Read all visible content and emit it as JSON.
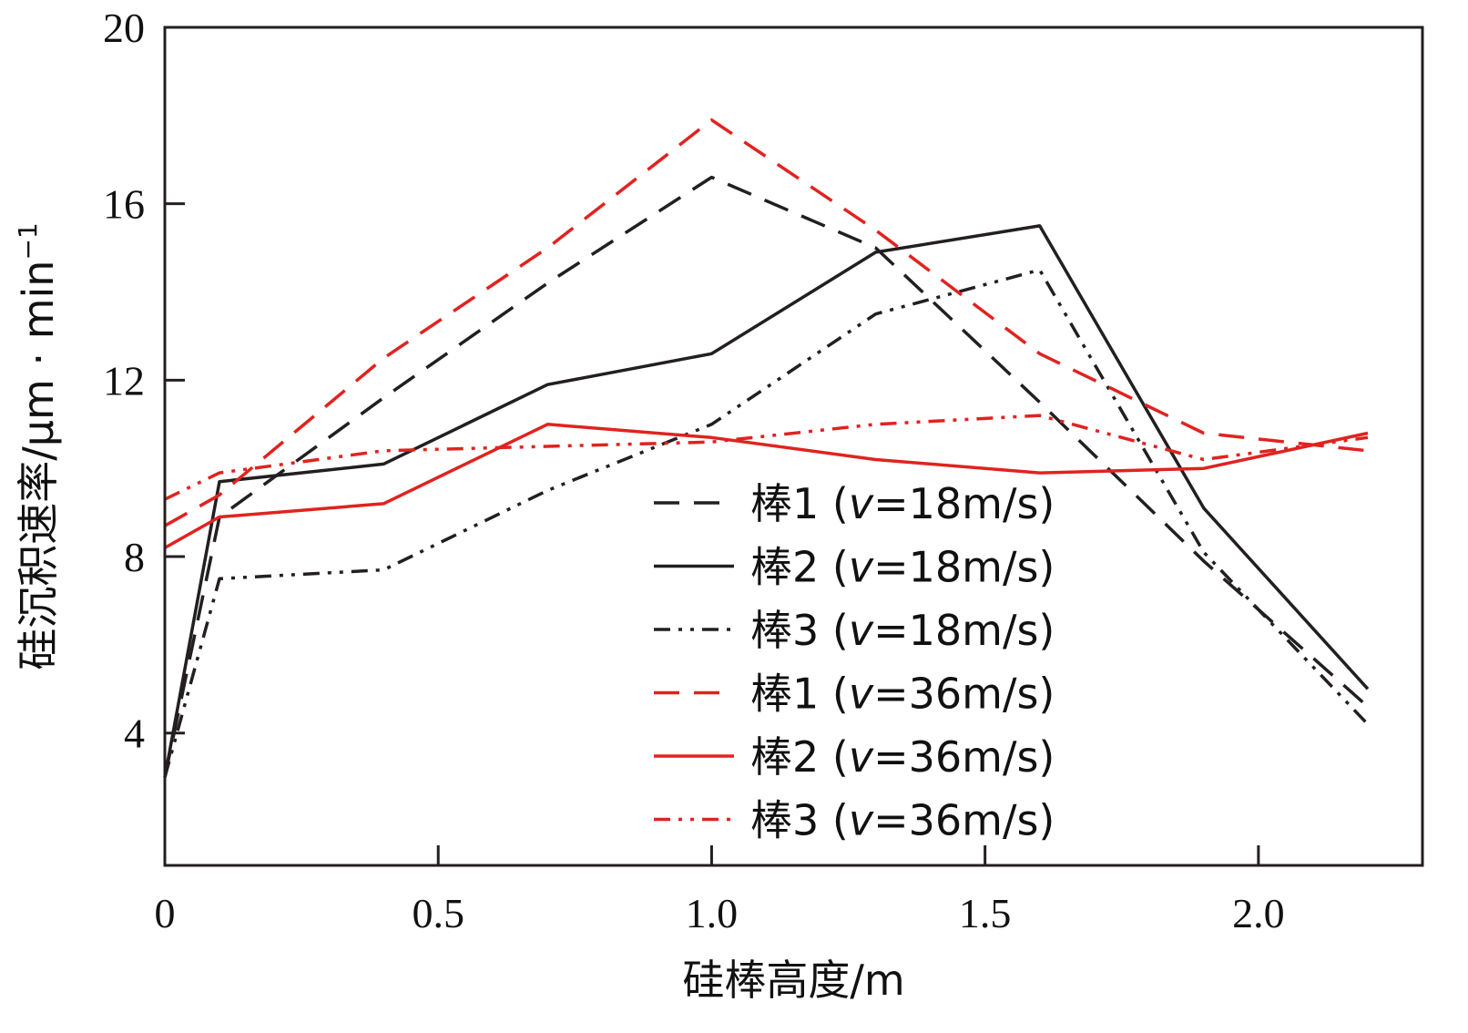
{
  "chart_data": {
    "type": "line",
    "title": "",
    "xlabel": "硅棒高度/m",
    "ylabel": "硅沉积速率/μm · min",
    "ylabel_sup": "−1",
    "xlim": [
      0,
      2.3
    ],
    "ylim": [
      1,
      20
    ],
    "xticks": [
      0,
      0.5,
      1.0,
      1.5,
      2.0
    ],
    "xtick_labels": [
      "0",
      "0.5",
      "1.0",
      "1.5",
      "2.0"
    ],
    "yticks": [
      4,
      8,
      12,
      16,
      20
    ],
    "ytick_labels": [
      "4",
      "8",
      "12",
      "16",
      "20"
    ],
    "legend_position": "center-right",
    "series": [
      {
        "name": "棒1",
        "v_label": "v",
        "speed": "=18m/s",
        "color": "#231f20",
        "dash": "dashed",
        "x": [
          0,
          0.1,
          0.4,
          0.7,
          1.0,
          1.3,
          1.6,
          1.9,
          2.2
        ],
        "y": [
          3.0,
          8.9,
          11.6,
          14.2,
          16.6,
          15.0,
          11.5,
          7.9,
          4.6
        ]
      },
      {
        "name": "棒2",
        "v_label": "v",
        "speed": "=18m/s",
        "color": "#231f20",
        "dash": "solid",
        "x": [
          0,
          0.1,
          0.4,
          0.7,
          1.0,
          1.3,
          1.6,
          1.9,
          2.2
        ],
        "y": [
          3.0,
          9.7,
          10.1,
          11.9,
          12.6,
          14.9,
          15.5,
          9.1,
          5.0
        ]
      },
      {
        "name": "棒3",
        "v_label": "v",
        "speed": "=18m/s",
        "color": "#231f20",
        "dash": "dashdotdot",
        "x": [
          0,
          0.1,
          0.4,
          0.7,
          1.0,
          1.3,
          1.6,
          1.9,
          2.2
        ],
        "y": [
          3.0,
          7.5,
          7.7,
          9.5,
          11.0,
          13.5,
          14.5,
          8.1,
          4.2
        ]
      },
      {
        "name": "棒1",
        "v_label": "v",
        "speed": "=36m/s",
        "color": "#e0231f",
        "dash": "dashed",
        "x": [
          0,
          0.1,
          0.4,
          0.7,
          1.0,
          1.3,
          1.6,
          1.9,
          2.2
        ],
        "y": [
          8.7,
          9.4,
          12.5,
          15.0,
          17.9,
          15.4,
          12.6,
          10.8,
          10.4
        ]
      },
      {
        "name": "棒2",
        "v_label": "v",
        "speed": "=36m/s",
        "color": "#e0231f",
        "dash": "solid",
        "x": [
          0,
          0.1,
          0.4,
          0.7,
          1.0,
          1.3,
          1.6,
          1.9,
          2.2
        ],
        "y": [
          8.2,
          8.9,
          9.2,
          11.0,
          10.7,
          10.2,
          9.9,
          10.0,
          10.8
        ]
      },
      {
        "name": "棒3",
        "v_label": "v",
        "speed": "=36m/s",
        "color": "#e0231f",
        "dash": "dashdotdot",
        "x": [
          0,
          0.1,
          0.4,
          0.7,
          1.0,
          1.3,
          1.6,
          1.9,
          2.2
        ],
        "y": [
          9.3,
          9.9,
          10.4,
          10.5,
          10.6,
          11.0,
          11.2,
          10.2,
          10.7
        ]
      }
    ]
  }
}
